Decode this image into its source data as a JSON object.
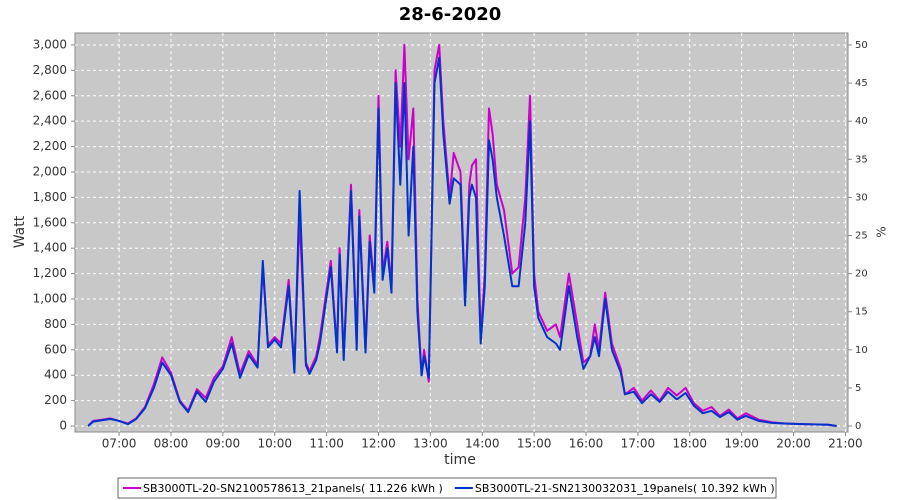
{
  "chart_data": {
    "type": "line",
    "title": "28-6-2020",
    "x_label": "time",
    "y_label": "Watt",
    "y2_label": "%",
    "x": [
      6.4,
      6.5,
      6.67,
      6.83,
      7.0,
      7.17,
      7.33,
      7.5,
      7.67,
      7.83,
      8.0,
      8.17,
      8.33,
      8.5,
      8.67,
      8.83,
      9.0,
      9.17,
      9.33,
      9.5,
      9.67,
      9.77,
      9.87,
      10.0,
      10.12,
      10.27,
      10.38,
      10.48,
      10.6,
      10.67,
      10.8,
      10.87,
      11.08,
      11.2,
      11.25,
      11.33,
      11.47,
      11.58,
      11.63,
      11.75,
      11.83,
      11.92,
      12.0,
      12.08,
      12.17,
      12.25,
      12.33,
      12.42,
      12.5,
      12.58,
      12.67,
      12.75,
      12.83,
      12.88,
      12.97,
      13.08,
      13.17,
      13.25,
      13.37,
      13.45,
      13.58,
      13.67,
      13.75,
      13.8,
      13.88,
      13.97,
      14.05,
      14.13,
      14.2,
      14.28,
      14.42,
      14.58,
      14.7,
      14.83,
      14.92,
      15.0,
      15.08,
      15.25,
      15.42,
      15.5,
      15.67,
      15.83,
      15.95,
      16.08,
      16.17,
      16.25,
      16.37,
      16.5,
      16.67,
      16.75,
      16.92,
      17.08,
      17.25,
      17.42,
      17.58,
      17.75,
      17.92,
      18.08,
      18.25,
      18.42,
      18.58,
      18.75,
      18.92,
      19.08,
      19.33,
      19.58,
      19.83,
      20.17,
      20.67,
      20.83
    ],
    "series": [
      {
        "name": "SB3000TL-20-SN2100578613_21panels( 11.226 kWh )",
        "color": "#cc00cc",
        "values": [
          0,
          40,
          50,
          60,
          40,
          20,
          60,
          150,
          330,
          540,
          420,
          200,
          120,
          290,
          220,
          380,
          470,
          700,
          410,
          590,
          480,
          1250,
          640,
          700,
          650,
          1150,
          450,
          1650,
          500,
          430,
          550,
          700,
          1300,
          600,
          1400,
          550,
          1900,
          650,
          1700,
          600,
          1500,
          1100,
          2600,
          1200,
          1450,
          1100,
          2800,
          2200,
          3000,
          2100,
          2500,
          1000,
          400,
          600,
          350,
          2800,
          3000,
          2400,
          1800,
          2150,
          2000,
          1000,
          1900,
          2050,
          2100,
          700,
          1200,
          2500,
          2300,
          1900,
          1700,
          1200,
          1250,
          1800,
          2600,
          1200,
          900,
          750,
          800,
          700,
          1200,
          800,
          500,
          550,
          800,
          600,
          1050,
          650,
          450,
          250,
          300,
          200,
          280,
          200,
          300,
          240,
          300,
          180,
          120,
          150,
          80,
          130,
          60,
          100,
          50,
          30,
          20,
          15,
          10,
          0
        ]
      },
      {
        "name": "SB3000TL-21-SN2130032031_19panels( 10.392 kWh )",
        "color": "#0033cc",
        "values": [
          0,
          35,
          45,
          55,
          40,
          15,
          55,
          140,
          300,
          500,
          400,
          190,
          110,
          270,
          190,
          350,
          450,
          650,
          380,
          560,
          460,
          1300,
          620,
          680,
          620,
          1100,
          420,
          1850,
          480,
          410,
          520,
          650,
          1250,
          580,
          1350,
          520,
          1850,
          600,
          1650,
          580,
          1450,
          1050,
          2500,
          1150,
          1400,
          1050,
          2700,
          1900,
          2700,
          1500,
          2200,
          900,
          400,
          550,
          380,
          2700,
          2900,
          2300,
          1750,
          1950,
          1900,
          950,
          1800,
          1900,
          1800,
          650,
          1100,
          2250,
          2100,
          1800,
          1500,
          1100,
          1100,
          1600,
          2400,
          1100,
          850,
          700,
          650,
          600,
          1100,
          700,
          450,
          550,
          700,
          550,
          1000,
          600,
          420,
          250,
          270,
          180,
          250,
          190,
          270,
          210,
          260,
          160,
          100,
          120,
          70,
          110,
          50,
          80,
          40,
          25,
          20,
          15,
          10,
          0
        ]
      }
    ],
    "xlim": [
      6.15,
      21.05
    ],
    "xticks": [
      {
        "value": 7,
        "label": "07:00"
      },
      {
        "value": 8,
        "label": "08:00"
      },
      {
        "value": 9,
        "label": "09:00"
      },
      {
        "value": 10,
        "label": "10:00"
      },
      {
        "value": 11,
        "label": "11:00"
      },
      {
        "value": 12,
        "label": "12:00"
      },
      {
        "value": 13,
        "label": "13:00"
      },
      {
        "value": 14,
        "label": "14:00"
      },
      {
        "value": 15,
        "label": "15:00"
      },
      {
        "value": 16,
        "label": "16:00"
      },
      {
        "value": 17,
        "label": "17:00"
      },
      {
        "value": 18,
        "label": "18:00"
      },
      {
        "value": 19,
        "label": "19:00"
      },
      {
        "value": 20,
        "label": "20:00"
      },
      {
        "value": 21,
        "label": "21:00"
      }
    ],
    "ylim": [
      -47,
      3094
    ],
    "yticks": [
      0,
      200,
      400,
      600,
      800,
      {
        "value": 1000,
        "label": "1,000"
      },
      {
        "value": 1200,
        "label": "1,200"
      },
      {
        "value": 1400,
        "label": "1,400"
      },
      {
        "value": 1600,
        "label": "1,600"
      },
      {
        "value": 1800,
        "label": "1,800"
      },
      {
        "value": 2000,
        "label": "2,000"
      },
      {
        "value": 2200,
        "label": "2,200"
      },
      {
        "value": 2400,
        "label": "2,400"
      },
      {
        "value": 2600,
        "label": "2,600"
      },
      {
        "value": 2800,
        "label": "2,800"
      },
      {
        "value": 3000,
        "label": "3,000"
      }
    ],
    "y2lim": [
      -0.78,
      51.57
    ],
    "y2ticks": [
      0,
      5,
      10,
      15,
      20,
      25,
      30,
      35,
      40,
      45,
      50
    ],
    "grid": true,
    "legend": "bottom"
  }
}
